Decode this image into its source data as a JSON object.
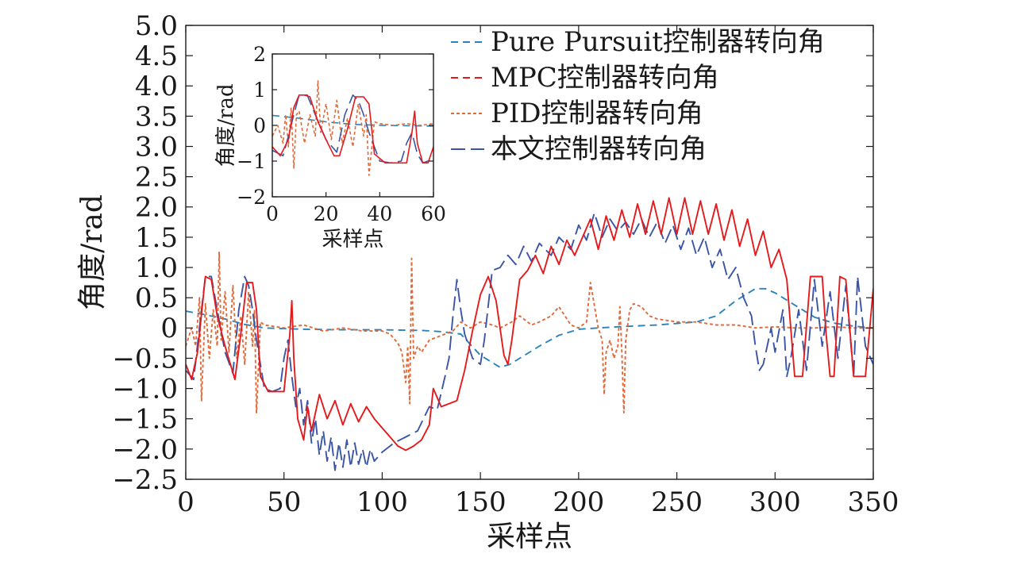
{
  "chart_data": [
    {
      "type": "line",
      "title": "",
      "xlabel": "采样点",
      "ylabel": "角度/rad",
      "xlim": [
        0,
        350
      ],
      "ylim": [
        -2.5,
        5.0
      ],
      "xticks": [
        0,
        50,
        100,
        150,
        200,
        250,
        300,
        350
      ],
      "xtick_labels": [
        "0",
        "50",
        "100",
        "150",
        "200",
        "250",
        "300",
        "350"
      ],
      "yticks": [
        5.0,
        4.5,
        4.0,
        3.5,
        3.0,
        2.5,
        2.0,
        1.5,
        1.0,
        0.5,
        0,
        -0.5,
        -1.0,
        -1.5,
        -2.0,
        -2.5
      ],
      "ytick_labels": [
        "5.0",
        "4.5",
        "4.0",
        "3.5",
        "3.0",
        "2.5",
        "2.0",
        "1.5",
        "1.0",
        "0.5",
        "0",
        "−0.5",
        "−1.0",
        "−1.5",
        "−2.0",
        "−2.5"
      ],
      "grid": false,
      "legend_position": "top-right",
      "series": [
        {
          "name": "Pure Pursuit控制器转向角",
          "color": "#2b83ba",
          "style": "dash",
          "x": [
            0,
            10,
            20,
            30,
            40,
            60,
            80,
            100,
            120,
            130,
            140,
            150,
            160,
            165,
            170,
            180,
            190,
            200,
            210,
            220,
            240,
            260,
            270,
            280,
            290,
            295,
            300,
            310,
            320,
            330,
            340,
            350
          ],
          "y": [
            0.28,
            0.22,
            0.15,
            0.06,
            0.0,
            -0.02,
            -0.03,
            -0.03,
            -0.04,
            -0.06,
            -0.1,
            -0.45,
            -0.65,
            -0.6,
            -0.5,
            -0.3,
            -0.12,
            -0.02,
            0.0,
            0.02,
            0.05,
            0.1,
            0.2,
            0.45,
            0.65,
            0.65,
            0.58,
            0.38,
            0.18,
            0.08,
            0.03,
            0.0
          ]
        },
        {
          "name": "MPC控制器转向角",
          "color": "#e41a1c",
          "style": "dash",
          "x": [
            0,
            3,
            6,
            10,
            13,
            16,
            20,
            25,
            28,
            31,
            34,
            36,
            38,
            42,
            46,
            50,
            53,
            54,
            55,
            57,
            60,
            62,
            64,
            68,
            72,
            76,
            80,
            84,
            88,
            92,
            96,
            100,
            104,
            108,
            112,
            116,
            120,
            124,
            126,
            130,
            134,
            138,
            142,
            146,
            150,
            154,
            158,
            162,
            164,
            166,
            170,
            174,
            178,
            182,
            186,
            190,
            194,
            198,
            202,
            206,
            210,
            214,
            218,
            222,
            226,
            230,
            234,
            238,
            242,
            246,
            250,
            254,
            258,
            262,
            266,
            270,
            274,
            278,
            282,
            286,
            290,
            294,
            298,
            302,
            306,
            310,
            314,
            318,
            322,
            324,
            326,
            328,
            330,
            333,
            336,
            340,
            342,
            346,
            350
          ],
          "y": [
            -0.6,
            -0.85,
            -0.4,
            0.85,
            0.8,
            0.2,
            -0.3,
            -0.85,
            -0.1,
            0.75,
            0.75,
            0.3,
            -0.8,
            -1.05,
            -1.05,
            -1.05,
            -0.1,
            0.45,
            -0.5,
            -1.5,
            -1.85,
            -1.3,
            -1.7,
            -1.1,
            -1.5,
            -1.2,
            -1.6,
            -1.25,
            -1.55,
            -1.3,
            -1.5,
            -1.65,
            -1.8,
            -1.95,
            -2.02,
            -1.95,
            -1.85,
            -1.6,
            -1.0,
            -1.3,
            -1.25,
            -1.2,
            -0.7,
            -0.05,
            0.55,
            0.85,
            0.45,
            -0.45,
            -0.6,
            -0.2,
            0.8,
            0.95,
            1.2,
            0.9,
            1.35,
            1.05,
            1.45,
            1.2,
            1.5,
            1.8,
            1.3,
            1.85,
            1.45,
            1.95,
            1.5,
            2.05,
            1.55,
            2.1,
            1.55,
            2.15,
            1.55,
            2.15,
            1.55,
            2.1,
            1.55,
            2.05,
            1.45,
            1.95,
            1.35,
            1.8,
            1.2,
            1.6,
            1.0,
            1.3,
            0.8,
            -0.8,
            -0.8,
            0.85,
            0.85,
            0.85,
            -0.1,
            -0.8,
            -0.8,
            0.85,
            0.8,
            -0.8,
            -0.8,
            -0.8,
            0.65
          ]
        },
        {
          "name": "PID控制器转向角",
          "color": "#e06a3a",
          "style": "short-dash",
          "x": [
            0,
            3,
            5,
            7,
            8,
            10,
            12,
            14,
            16,
            17,
            18,
            20,
            22,
            24,
            26,
            28,
            30,
            32,
            34,
            35,
            36,
            38,
            40,
            50,
            60,
            70,
            80,
            90,
            100,
            104,
            108,
            110,
            112,
            113,
            114,
            115,
            116,
            118,
            120,
            124,
            128,
            132,
            136,
            140,
            145,
            150,
            156,
            160,
            166,
            170,
            176,
            180,
            186,
            190,
            196,
            200,
            204,
            206,
            210,
            212,
            213,
            214,
            216,
            218,
            220,
            221,
            222,
            223,
            224,
            226,
            228,
            232,
            236,
            240,
            250,
            260,
            270,
            280,
            290,
            300,
            310,
            320,
            330,
            340,
            350
          ],
          "y": [
            -0.3,
            0.0,
            -0.3,
            0.5,
            -1.2,
            0.4,
            -0.5,
            0.3,
            -0.3,
            1.25,
            -0.2,
            0.6,
            -0.4,
            0.7,
            -0.5,
            0.2,
            -0.6,
            0.6,
            -0.3,
            0.3,
            -1.4,
            0.1,
            0.05,
            0.0,
            0.05,
            -0.05,
            0.0,
            -0.05,
            -0.05,
            -0.1,
            -0.25,
            -0.4,
            -0.9,
            -0.3,
            -1.25,
            1.15,
            -0.5,
            -0.3,
            -0.4,
            -0.2,
            -0.15,
            -0.1,
            -0.05,
            0.1,
            0.0,
            0.1,
            0.05,
            0.0,
            0.1,
            0.2,
            0.05,
            0.1,
            0.2,
            0.35,
            0.05,
            0.0,
            0.1,
            0.75,
            0.0,
            -0.2,
            -1.1,
            -0.4,
            -0.2,
            -0.5,
            -0.3,
            0.35,
            -0.4,
            -1.4,
            -0.2,
            0.3,
            0.4,
            0.35,
            0.2,
            0.15,
            0.1,
            0.1,
            0.05,
            0.05,
            0.0,
            0.02,
            0.0,
            0.0,
            0.02,
            0.0,
            0.0
          ]
        },
        {
          "name": "本文控制器转向角",
          "color": "#3a55a6",
          "style": "long-dash",
          "x": [
            0,
            4,
            8,
            10,
            13,
            16,
            20,
            24,
            27,
            30,
            32,
            34,
            36,
            40,
            44,
            48,
            50,
            52,
            54,
            56,
            58,
            60,
            62,
            64,
            66,
            68,
            70,
            72,
            74,
            76,
            78,
            80,
            82,
            84,
            86,
            88,
            90,
            92,
            94,
            96,
            100,
            106,
            112,
            118,
            124,
            128,
            132,
            134,
            136,
            138,
            140,
            142,
            144,
            146,
            148,
            150,
            152,
            156,
            160,
            164,
            168,
            172,
            176,
            180,
            186,
            190,
            196,
            200,
            204,
            208,
            212,
            216,
            220,
            224,
            228,
            232,
            236,
            240,
            244,
            248,
            252,
            256,
            260,
            264,
            268,
            272,
            276,
            280,
            284,
            288,
            290,
            292,
            294,
            296,
            298,
            300,
            304,
            306,
            308,
            312,
            316,
            320,
            324,
            328,
            332,
            336,
            340,
            342,
            346,
            350
          ],
          "y": [
            -0.7,
            -0.85,
            0.3,
            0.85,
            0.85,
            0.3,
            -0.4,
            -0.75,
            0.3,
            0.85,
            0.7,
            0.3,
            -0.2,
            -1.0,
            -1.05,
            -1.0,
            -0.5,
            -0.2,
            -0.8,
            -1.3,
            -1.0,
            -1.6,
            -1.2,
            -1.9,
            -1.5,
            -2.1,
            -1.7,
            -2.2,
            -1.8,
            -2.35,
            -1.9,
            -2.3,
            -1.85,
            -2.3,
            -1.9,
            -2.25,
            -2.0,
            -2.3,
            -2.0,
            -2.2,
            -2.05,
            -1.9,
            -1.8,
            -1.7,
            -1.3,
            -1.35,
            -0.8,
            -0.5,
            0.2,
            0.8,
            0.3,
            -0.1,
            -0.3,
            -0.5,
            -0.55,
            -0.6,
            -0.2,
            0.95,
            1.0,
            1.2,
            1.05,
            1.35,
            1.1,
            1.4,
            1.2,
            1.5,
            1.3,
            1.7,
            1.45,
            1.9,
            1.5,
            1.8,
            1.6,
            1.75,
            1.55,
            1.8,
            1.5,
            1.75,
            1.4,
            1.7,
            1.3,
            1.65,
            1.2,
            1.5,
            1.0,
            1.3,
            0.8,
            1.0,
            0.5,
            0.2,
            -0.3,
            -0.7,
            -0.6,
            -0.3,
            0.0,
            -0.4,
            0.3,
            -0.8,
            -0.5,
            0.3,
            -0.7,
            0.8,
            -0.3,
            0.6,
            -0.5,
            0.7,
            -0.8,
            0.85,
            -0.3,
            -0.6
          ]
        }
      ]
    },
    {
      "type": "line",
      "title": "",
      "xlabel": "采样点",
      "ylabel": "角度/rad",
      "xlim": [
        0,
        60
      ],
      "ylim": [
        -2,
        2
      ],
      "xticks": [
        0,
        20,
        40,
        60
      ],
      "xtick_labels": [
        "0",
        "20",
        "40",
        "60"
      ],
      "yticks": [
        2,
        1,
        0,
        -1,
        -2
      ],
      "ytick_labels": [
        "2",
        "1",
        "0",
        "−1",
        "−2"
      ],
      "grid": false,
      "series": [
        {
          "color": "#2b83ba",
          "style": "dash",
          "x": [
            0,
            5,
            10,
            15,
            20,
            30,
            40,
            50,
            60
          ],
          "y": [
            0.28,
            0.24,
            0.2,
            0.15,
            0.1,
            0.03,
            0.0,
            -0.01,
            -0.02
          ]
        },
        {
          "color": "#e41a1c",
          "style": "solid",
          "x": [
            0,
            3,
            6,
            8,
            10,
            12,
            14,
            17,
            20,
            23,
            25,
            28,
            31,
            34,
            36,
            38,
            42,
            46,
            50,
            52,
            53,
            54,
            56,
            58,
            60
          ],
          "y": [
            -0.6,
            -0.85,
            -0.4,
            0.5,
            0.85,
            0.85,
            0.8,
            0.1,
            -0.4,
            -0.85,
            -0.85,
            -0.1,
            0.8,
            0.8,
            0.6,
            -0.8,
            -1.05,
            -1.05,
            -1.05,
            -0.2,
            0.4,
            -0.5,
            -1.05,
            -1.05,
            -0.6
          ]
        },
        {
          "color": "#e06a3a",
          "style": "short-dash",
          "x": [
            0,
            2,
            4,
            5,
            6,
            7,
            8,
            9,
            10,
            12,
            14,
            16,
            17,
            18,
            20,
            22,
            24,
            26,
            28,
            30,
            32,
            34,
            35,
            36,
            38,
            40,
            45,
            50,
            55,
            60
          ],
          "y": [
            -0.3,
            0.0,
            -0.5,
            0.3,
            -0.6,
            0.5,
            -1.2,
            0.3,
            0.4,
            -0.5,
            0.3,
            -0.3,
            1.25,
            -0.2,
            0.6,
            -0.4,
            0.7,
            -0.5,
            0.2,
            -0.6,
            0.6,
            -0.3,
            0.3,
            -1.4,
            0.1,
            0.05,
            0.0,
            0.05,
            0.0,
            0.05
          ]
        },
        {
          "color": "#3a55a6",
          "style": "long-dash",
          "x": [
            0,
            4,
            6,
            8,
            10,
            13,
            16,
            20,
            24,
            27,
            30,
            32,
            34,
            36,
            40,
            44,
            48,
            50,
            52,
            54,
            56,
            58,
            60
          ],
          "y": [
            -0.7,
            -0.85,
            -0.3,
            0.3,
            0.85,
            0.85,
            0.3,
            -0.4,
            -0.75,
            0.3,
            0.85,
            0.7,
            0.3,
            -0.2,
            -1.0,
            -1.05,
            -1.0,
            -0.5,
            -0.2,
            -0.8,
            -1.05,
            -1.0,
            -0.9
          ]
        }
      ]
    }
  ]
}
